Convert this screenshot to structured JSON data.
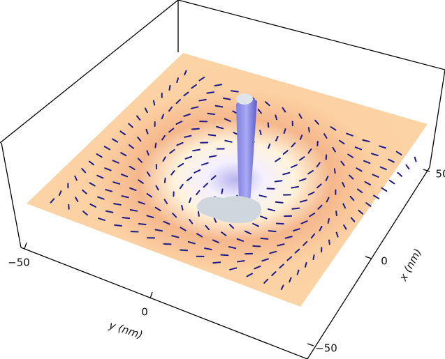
{
  "chart_data": {
    "type": "surface3d",
    "xlabel": "x (nm)",
    "ylabel": "y (nm)",
    "xticks": [
      {
        "value": -50,
        "label": "−50"
      },
      0,
      50
    ],
    "yticks": [
      {
        "value": -50,
        "label": "−50"
      },
      0
    ]
  }
}
